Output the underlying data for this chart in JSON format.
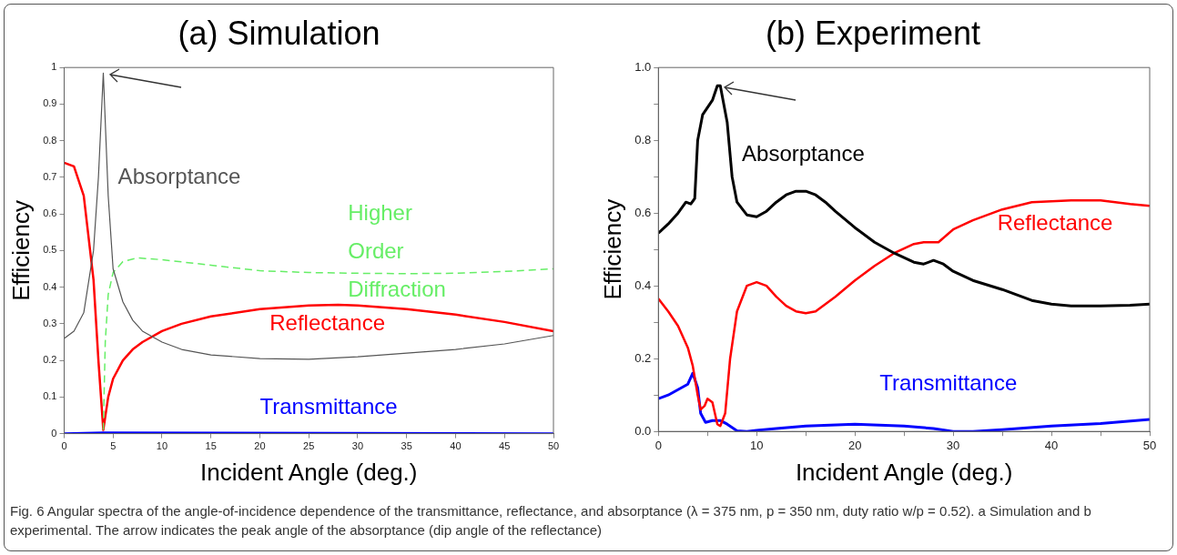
{
  "chart_data": [
    {
      "type": "line",
      "title": "(a) Simulation",
      "xlabel": "Incident Angle (deg.)",
      "ylabel": "Efficiency",
      "xlim": [
        0,
        50
      ],
      "ylim": [
        0,
        1
      ],
      "xticks": [
        0,
        5,
        10,
        15,
        20,
        25,
        30,
        35,
        40,
        45,
        50
      ],
      "yticks": [
        0,
        0.1,
        0.2,
        0.3,
        0.4,
        0.5,
        0.6,
        0.7,
        0.8,
        0.9,
        1
      ],
      "grid": false,
      "legend": false,
      "marker": "none",
      "series": [
        {
          "name": "Absorptance",
          "color": "#555555",
          "x": [
            0,
            1,
            2,
            3,
            3.5,
            4,
            4.5,
            5,
            6,
            7,
            8,
            10,
            12,
            15,
            20,
            25,
            30,
            35,
            40,
            45,
            50
          ],
          "values": [
            0.26,
            0.28,
            0.33,
            0.5,
            0.7,
            0.985,
            0.65,
            0.45,
            0.36,
            0.31,
            0.28,
            0.25,
            0.23,
            0.215,
            0.205,
            0.203,
            0.21,
            0.22,
            0.23,
            0.245,
            0.268
          ]
        },
        {
          "name": "Higher Order Diffraction",
          "color": "#66ee66",
          "line_style": "dashed",
          "x": [
            4,
            4.2,
            4.5,
            5,
            6,
            7.5,
            10,
            15,
            20,
            25,
            30,
            35,
            40,
            45,
            50
          ],
          "values": [
            0.01,
            0.25,
            0.38,
            0.44,
            0.47,
            0.48,
            0.475,
            0.46,
            0.445,
            0.44,
            0.438,
            0.437,
            0.438,
            0.443,
            0.45
          ]
        },
        {
          "name": "Reflectance",
          "color": "#ff0000",
          "x": [
            0,
            1,
            2,
            3,
            3.5,
            4,
            4.5,
            5,
            6,
            7,
            8,
            10,
            12,
            15,
            20,
            25,
            28,
            30,
            35,
            40,
            45,
            50
          ],
          "values": [
            0.74,
            0.73,
            0.65,
            0.42,
            0.2,
            0.01,
            0.1,
            0.15,
            0.2,
            0.23,
            0.25,
            0.28,
            0.3,
            0.32,
            0.34,
            0.35,
            0.352,
            0.35,
            0.34,
            0.325,
            0.305,
            0.28
          ]
        },
        {
          "name": "Transmittance",
          "color": "#0000ff",
          "x": [
            0,
            4,
            50
          ],
          "values": [
            0,
            0.003,
            0
          ]
        }
      ]
    },
    {
      "type": "line",
      "title": "(b) Experiment",
      "xlabel": "Incident Angle (deg.)",
      "ylabel": "Efficiency",
      "xlim": [
        0,
        50
      ],
      "ylim": [
        0,
        1
      ],
      "xticks": [
        0,
        {
          "value": 5,
          "label": null
        },
        10,
        {
          "value": 15,
          "label": null
        },
        20,
        {
          "value": 25,
          "label": null
        },
        30,
        {
          "value": 35,
          "label": null
        },
        40,
        {
          "value": 45,
          "label": null
        },
        50
      ],
      "yticks": [
        {
          "value": 0,
          "label": "0.0"
        },
        {
          "value": 0.1,
          "label": null
        },
        {
          "value": 0.2,
          "label": "0.2"
        },
        {
          "value": 0.3,
          "label": null
        },
        {
          "value": 0.4,
          "label": "0.4"
        },
        {
          "value": 0.5,
          "label": null
        },
        {
          "value": 0.6,
          "label": "0.6"
        },
        {
          "value": 0.7,
          "label": null
        },
        {
          "value": 0.8,
          "label": "0.8"
        },
        {
          "value": 0.9,
          "label": null
        },
        {
          "value": 1,
          "label": "1.0"
        }
      ],
      "grid": false,
      "legend": false,
      "marker": "none",
      "annotations": [
        "Fig. 6 Angular spectra of the angle-of-incidence dependence of the transmittance, reflectance, and absorptance (λ = 375 nm, p = 350 nm, duty ratio w/p = 0.52). a Simulation and b experimental. The arrow indicates the peak angle of the absorptance (dip angle of the reflectance)"
      ],
      "series": [
        {
          "name": "Absorptance",
          "color": "#000000",
          "x": [
            0,
            1,
            2,
            2.8,
            3.3,
            3.7,
            4,
            4.5,
            5,
            5.5,
            6,
            6.3,
            7,
            7.5,
            8,
            9,
            10,
            11,
            12,
            13,
            14,
            15,
            16,
            17,
            18,
            20,
            22,
            24,
            26,
            27,
            28,
            29,
            30,
            32,
            35,
            38,
            40,
            42,
            45,
            48,
            50
          ],
          "values": [
            0.545,
            0.57,
            0.6,
            0.63,
            0.625,
            0.64,
            0.8,
            0.87,
            0.89,
            0.91,
            0.95,
            0.95,
            0.85,
            0.7,
            0.63,
            0.595,
            0.59,
            0.605,
            0.63,
            0.65,
            0.66,
            0.66,
            0.65,
            0.63,
            0.605,
            0.56,
            0.52,
            0.49,
            0.465,
            0.46,
            0.47,
            0.46,
            0.44,
            0.415,
            0.39,
            0.36,
            0.35,
            0.345,
            0.345,
            0.347,
            0.35
          ]
        },
        {
          "name": "Reflectance",
          "color": "#ff0000",
          "x": [
            0,
            1,
            2,
            3,
            3.5,
            4,
            4.3,
            4.7,
            5,
            5.5,
            6,
            6.3,
            6.8,
            7.3,
            8,
            9,
            10,
            11,
            12,
            13,
            14,
            15,
            16,
            17,
            18,
            20,
            22,
            24,
            26,
            27,
            28.5,
            30,
            32,
            35,
            38,
            42,
            45,
            48,
            50
          ],
          "values": [
            0.365,
            0.33,
            0.29,
            0.23,
            0.18,
            0.1,
            0.06,
            0.07,
            0.09,
            0.08,
            0.02,
            0.015,
            0.05,
            0.2,
            0.33,
            0.4,
            0.41,
            0.4,
            0.37,
            0.345,
            0.33,
            0.325,
            0.33,
            0.35,
            0.37,
            0.415,
            0.455,
            0.49,
            0.515,
            0.52,
            0.52,
            0.555,
            0.58,
            0.61,
            0.63,
            0.635,
            0.635,
            0.625,
            0.62
          ]
        },
        {
          "name": "Transmittance",
          "color": "#0000ff",
          "x": [
            0,
            1,
            2,
            3,
            3.5,
            4,
            4.3,
            4.8,
            5.5,
            6.3,
            7,
            8,
            9,
            10,
            12,
            15,
            20,
            25,
            28,
            30,
            32,
            35,
            40,
            45,
            50
          ],
          "values": [
            0.09,
            0.1,
            0.115,
            0.13,
            0.16,
            0.12,
            0.05,
            0.025,
            0.03,
            0.03,
            0.02,
            0.002,
            0,
            0.003,
            0.008,
            0.015,
            0.02,
            0.015,
            0.008,
            0,
            0,
            0.005,
            0.015,
            0.022,
            0.033
          ]
        }
      ]
    }
  ]
}
